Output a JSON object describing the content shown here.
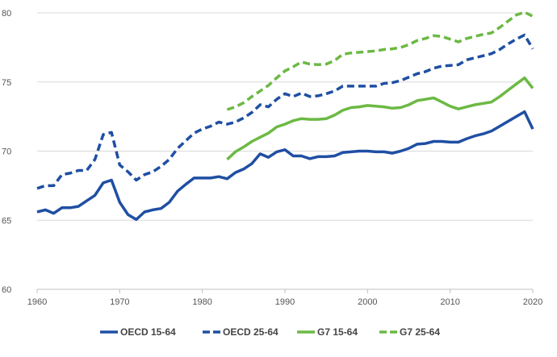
{
  "chart_data": {
    "type": "line",
    "title": "",
    "xlabel": "",
    "ylabel": "",
    "xlim": [
      1960,
      2020
    ],
    "ylim": [
      60,
      80
    ],
    "x_ticks": [
      "1960",
      "1970",
      "1980",
      "1990",
      "2000",
      "2010",
      "2020"
    ],
    "y_ticks": [
      "60",
      "65",
      "70",
      "75",
      "80"
    ],
    "grid": "horizontal",
    "legend_position": "bottom",
    "series": [
      {
        "name": "OECD 15-64",
        "color": "#1f4fa3",
        "style": "solid",
        "points": [
          [
            1960,
            65.6
          ],
          [
            1961,
            65.75
          ],
          [
            1962,
            65.5
          ],
          [
            1963,
            65.9
          ],
          [
            1964,
            65.9
          ],
          [
            1965,
            66.0
          ],
          [
            1966,
            66.4
          ],
          [
            1967,
            66.8
          ],
          [
            1968,
            67.7
          ],
          [
            1969,
            67.9
          ],
          [
            1970,
            66.3
          ],
          [
            1971,
            65.4
          ],
          [
            1972,
            65.05
          ],
          [
            1973,
            65.6
          ],
          [
            1974,
            65.75
          ],
          [
            1975,
            65.85
          ],
          [
            1976,
            66.3
          ],
          [
            1977,
            67.1
          ],
          [
            1978,
            67.6
          ],
          [
            1979,
            68.05
          ],
          [
            1980,
            68.05
          ],
          [
            1981,
            68.05
          ],
          [
            1982,
            68.15
          ],
          [
            1983,
            68.0
          ],
          [
            1984,
            68.45
          ],
          [
            1985,
            68.7
          ],
          [
            1986,
            69.1
          ],
          [
            1987,
            69.8
          ],
          [
            1988,
            69.55
          ],
          [
            1989,
            69.95
          ],
          [
            1990,
            70.1
          ],
          [
            1991,
            69.65
          ],
          [
            1992,
            69.65
          ],
          [
            1993,
            69.45
          ],
          [
            1994,
            69.6
          ],
          [
            1995,
            69.6
          ],
          [
            1996,
            69.65
          ],
          [
            1997,
            69.9
          ],
          [
            1998,
            69.95
          ],
          [
            1999,
            70.0
          ],
          [
            2000,
            70.0
          ],
          [
            2001,
            69.95
          ],
          [
            2002,
            69.95
          ],
          [
            2003,
            69.85
          ],
          [
            2004,
            70.0
          ],
          [
            2005,
            70.2
          ],
          [
            2006,
            70.5
          ],
          [
            2007,
            70.55
          ],
          [
            2008,
            70.7
          ],
          [
            2009,
            70.7
          ],
          [
            2010,
            70.65
          ],
          [
            2011,
            70.65
          ],
          [
            2012,
            70.9
          ],
          [
            2013,
            71.1
          ],
          [
            2014,
            71.25
          ],
          [
            2015,
            71.45
          ],
          [
            2016,
            71.8
          ],
          [
            2017,
            72.15
          ],
          [
            2018,
            72.5
          ],
          [
            2019,
            72.85
          ],
          [
            2020,
            71.6
          ]
        ]
      },
      {
        "name": "OECD 25-64",
        "color": "#1f4fa3",
        "style": "dashed",
        "points": [
          [
            1960,
            67.3
          ],
          [
            1961,
            67.5
          ],
          [
            1962,
            67.5
          ],
          [
            1963,
            68.3
          ],
          [
            1964,
            68.4
          ],
          [
            1965,
            68.6
          ],
          [
            1966,
            68.6
          ],
          [
            1967,
            69.4
          ],
          [
            1968,
            71.2
          ],
          [
            1969,
            71.35
          ],
          [
            1970,
            69.0
          ],
          [
            1971,
            68.5
          ],
          [
            1972,
            67.9
          ],
          [
            1973,
            68.3
          ],
          [
            1974,
            68.5
          ],
          [
            1975,
            68.9
          ],
          [
            1976,
            69.4
          ],
          [
            1977,
            70.2
          ],
          [
            1978,
            70.75
          ],
          [
            1979,
            71.3
          ],
          [
            1980,
            71.6
          ],
          [
            1981,
            71.8
          ],
          [
            1982,
            72.1
          ],
          [
            1983,
            71.95
          ],
          [
            1984,
            72.1
          ],
          [
            1985,
            72.4
          ],
          [
            1986,
            72.8
          ],
          [
            1987,
            73.35
          ],
          [
            1988,
            73.2
          ],
          [
            1989,
            73.75
          ],
          [
            1990,
            74.15
          ],
          [
            1991,
            73.95
          ],
          [
            1992,
            74.2
          ],
          [
            1993,
            73.95
          ],
          [
            1994,
            74.0
          ],
          [
            1995,
            74.15
          ],
          [
            1996,
            74.35
          ],
          [
            1997,
            74.7
          ],
          [
            1998,
            74.7
          ],
          [
            1999,
            74.7
          ],
          [
            2000,
            74.7
          ],
          [
            2001,
            74.7
          ],
          [
            2002,
            74.9
          ],
          [
            2003,
            74.95
          ],
          [
            2004,
            75.1
          ],
          [
            2005,
            75.35
          ],
          [
            2006,
            75.6
          ],
          [
            2007,
            75.75
          ],
          [
            2008,
            76.0
          ],
          [
            2009,
            76.15
          ],
          [
            2010,
            76.2
          ],
          [
            2011,
            76.25
          ],
          [
            2012,
            76.6
          ],
          [
            2013,
            76.75
          ],
          [
            2014,
            76.9
          ],
          [
            2015,
            77.05
          ],
          [
            2016,
            77.35
          ],
          [
            2017,
            77.75
          ],
          [
            2018,
            78.1
          ],
          [
            2019,
            78.4
          ],
          [
            2020,
            77.4
          ]
        ]
      },
      {
        "name": "G7 15-64",
        "color": "#6cb944",
        "style": "solid",
        "points": [
          [
            1983,
            69.4
          ],
          [
            1984,
            69.95
          ],
          [
            1985,
            70.3
          ],
          [
            1986,
            70.7
          ],
          [
            1987,
            71.0
          ],
          [
            1988,
            71.3
          ],
          [
            1989,
            71.75
          ],
          [
            1990,
            71.95
          ],
          [
            1991,
            72.2
          ],
          [
            1992,
            72.35
          ],
          [
            1993,
            72.3
          ],
          [
            1994,
            72.3
          ],
          [
            1995,
            72.35
          ],
          [
            1996,
            72.6
          ],
          [
            1997,
            72.95
          ],
          [
            1998,
            73.15
          ],
          [
            1999,
            73.2
          ],
          [
            2000,
            73.3
          ],
          [
            2001,
            73.25
          ],
          [
            2002,
            73.2
          ],
          [
            2003,
            73.1
          ],
          [
            2004,
            73.15
          ],
          [
            2005,
            73.35
          ],
          [
            2006,
            73.65
          ],
          [
            2007,
            73.75
          ],
          [
            2008,
            73.85
          ],
          [
            2009,
            73.55
          ],
          [
            2010,
            73.25
          ],
          [
            2011,
            73.05
          ],
          [
            2012,
            73.2
          ],
          [
            2013,
            73.35
          ],
          [
            2014,
            73.45
          ],
          [
            2015,
            73.55
          ],
          [
            2016,
            73.95
          ],
          [
            2017,
            74.4
          ],
          [
            2018,
            74.85
          ],
          [
            2019,
            75.3
          ],
          [
            2020,
            74.55
          ]
        ]
      },
      {
        "name": "G7 25-64",
        "color": "#6cb944",
        "style": "dashed",
        "points": [
          [
            1983,
            73.0
          ],
          [
            1984,
            73.2
          ],
          [
            1985,
            73.5
          ],
          [
            1986,
            73.95
          ],
          [
            1987,
            74.35
          ],
          [
            1988,
            74.75
          ],
          [
            1989,
            75.3
          ],
          [
            1990,
            75.8
          ],
          [
            1991,
            76.1
          ],
          [
            1992,
            76.45
          ],
          [
            1993,
            76.3
          ],
          [
            1994,
            76.25
          ],
          [
            1995,
            76.3
          ],
          [
            1996,
            76.55
          ],
          [
            1997,
            77.0
          ],
          [
            1998,
            77.1
          ],
          [
            1999,
            77.15
          ],
          [
            2000,
            77.2
          ],
          [
            2001,
            77.25
          ],
          [
            2002,
            77.35
          ],
          [
            2003,
            77.4
          ],
          [
            2004,
            77.5
          ],
          [
            2005,
            77.7
          ],
          [
            2006,
            78.0
          ],
          [
            2007,
            78.15
          ],
          [
            2008,
            78.35
          ],
          [
            2009,
            78.3
          ],
          [
            2010,
            78.1
          ],
          [
            2011,
            77.9
          ],
          [
            2012,
            78.15
          ],
          [
            2013,
            78.3
          ],
          [
            2014,
            78.45
          ],
          [
            2015,
            78.55
          ],
          [
            2016,
            78.95
          ],
          [
            2017,
            79.4
          ],
          [
            2018,
            79.85
          ],
          [
            2019,
            80.05
          ],
          [
            2020,
            79.75
          ]
        ]
      }
    ]
  }
}
